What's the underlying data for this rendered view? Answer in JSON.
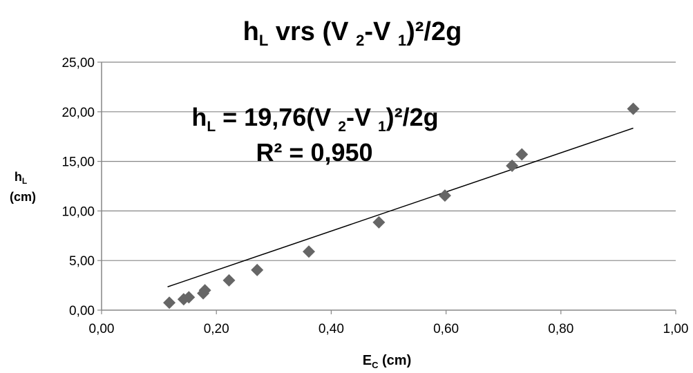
{
  "chart_data": {
    "type": "scatter",
    "title": {
      "main": "h",
      "main_sub": "L",
      "rest": " vrs (V ",
      "sub1": "2",
      "mid": "-V ",
      "sub2": "1",
      "tail": ")²/2g"
    },
    "xlabel": {
      "main": "E",
      "sub": "C",
      "rest": " (cm)"
    },
    "ylabel": {
      "main": "h",
      "sub": "L",
      "line2": "(cm)"
    },
    "xlim": [
      0,
      1
    ],
    "ylim": [
      0,
      25
    ],
    "x_ticks": [
      "0,00",
      "0,20",
      "0,40",
      "0,60",
      "0,80",
      "1,00"
    ],
    "y_ticks": [
      "0,00",
      "5,00",
      "10,00",
      "15,00",
      "20,00",
      "25,00"
    ],
    "grid": "horizontal",
    "marker_color": "#666666",
    "points": [
      {
        "x": 0.118,
        "y": 0.75
      },
      {
        "x": 0.143,
        "y": 1.1
      },
      {
        "x": 0.152,
        "y": 1.3
      },
      {
        "x": 0.177,
        "y": 1.7
      },
      {
        "x": 0.18,
        "y": 2.0
      },
      {
        "x": 0.222,
        "y": 3.0
      },
      {
        "x": 0.271,
        "y": 4.05
      },
      {
        "x": 0.361,
        "y": 5.9
      },
      {
        "x": 0.483,
        "y": 8.85
      },
      {
        "x": 0.598,
        "y": 11.55
      },
      {
        "x": 0.715,
        "y": 14.55
      },
      {
        "x": 0.732,
        "y": 15.7
      },
      {
        "x": 0.926,
        "y": 20.3
      }
    ],
    "trendline": {
      "x_start": 0.115,
      "y_start": 2.35,
      "x_end": 0.926,
      "y_end": 18.35
    },
    "annotation": {
      "eq_main": "h",
      "eq_sub": "L",
      "eq_rest": "  = 19,76(V ",
      "eq_sub1": "2",
      "eq_mid": "-V ",
      "eq_sub2": "1",
      "eq_tail": ")²/2g",
      "r2": "R² = 0,950"
    }
  }
}
